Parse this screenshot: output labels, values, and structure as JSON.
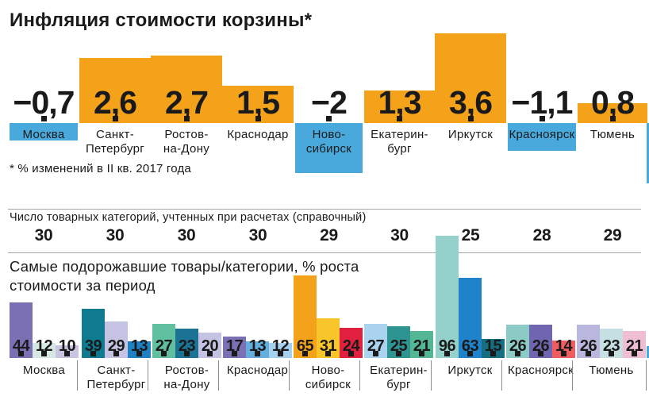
{
  "title": "Инфляция стоимости корзины*",
  "footnote": "* % изменений в II кв. 2017 года",
  "colors": {
    "positive_bar": "#F5A21B",
    "negative_bar": "#4AA9DC",
    "text": "#1a1a1a",
    "rule": "#a6a6a6",
    "divider": "#8c8c8c"
  },
  "middle": {
    "label": "Число товарных категорий, учтенных при расчетах (справочный)"
  },
  "bottom": {
    "heading": "Самые подорожавшие товары/категории, % роста стоимости за период"
  },
  "chart_data": [
    {
      "type": "bar",
      "title": "Инфляция стоимости корзины*",
      "subtitle": "* % изменений в II кв. 2017 года",
      "categories": [
        "Москва",
        "Санкт-Петербург",
        "Ростов-на-Дону",
        "Краснодар",
        "Новосибирск",
        "Екатеринбург",
        "Иркутск",
        "Красноярск",
        "Тюмень"
      ],
      "category_label_lines": [
        [
          "Москва"
        ],
        [
          "Санкт-",
          "Петербург"
        ],
        [
          "Ростов-",
          "на-Дону"
        ],
        [
          "Краснодар"
        ],
        [
          "Ново-",
          "сибирск"
        ],
        [
          "Екатерин-",
          "бург"
        ],
        [
          "Иркутск"
        ],
        [
          "Красноярск"
        ],
        [
          "Тюмень"
        ]
      ],
      "values": [
        -0.7,
        2.6,
        2.7,
        1.5,
        -2,
        1.3,
        3.6,
        -1.1,
        0.8
      ],
      "value_labels": [
        "−0,7",
        "2,6",
        "2,7",
        "1,5",
        "−2",
        "1,3",
        "3,6",
        "−1,1",
        "0,8"
      ],
      "positive_color": "#F5A21B",
      "negative_color": "#4AA9DC",
      "ylim": [
        -2,
        3.6
      ],
      "grid": false,
      "legend": false
    },
    {
      "type": "table",
      "title": "Число товарных категорий, учтенных при расчетах (справочный)",
      "categories": [
        "Москва",
        "Санкт-Петербург",
        "Ростов-на-Дону",
        "Краснодар",
        "Новосибирск",
        "Екатеринбург",
        "Иркутск",
        "Красноярск",
        "Тюмень"
      ],
      "values": [
        30,
        30,
        30,
        30,
        29,
        30,
        25,
        28,
        29
      ]
    },
    {
      "type": "bar",
      "subtype": "grouped",
      "title": "Самые подорожавшие товары/категории, % роста стоимости за период",
      "categories": [
        "Москва",
        "Санкт-Петербург",
        "Ростов-на-Дону",
        "Краснодар",
        "Новосибирск",
        "Екатеринбург",
        "Иркутск",
        "Красноярск",
        "Тюмень"
      ],
      "category_label_lines": [
        [
          "Москва"
        ],
        [
          "Санкт-",
          "Петербург"
        ],
        [
          "Ростов-",
          "на-Дону"
        ],
        [
          "Краснодар"
        ],
        [
          "Ново-",
          "сибирск"
        ],
        [
          "Екатерин-",
          "бург"
        ],
        [
          "Иркутск"
        ],
        [
          "Красноярск"
        ],
        [
          "Тюмень"
        ]
      ],
      "ylim": [
        0,
        96
      ],
      "grid": false,
      "legend": false,
      "groups": [
        {
          "city": "Москва",
          "bars": [
            {
              "value": 44,
              "color": "#7C70B5"
            },
            {
              "value": 12,
              "color": "#D5E8E3"
            },
            {
              "value": 10,
              "color": "#C8C5E2"
            }
          ]
        },
        {
          "city": "Санкт-Петербург",
          "bars": [
            {
              "value": 39,
              "color": "#0F7B90"
            },
            {
              "value": 29,
              "color": "#C4C3E3"
            },
            {
              "value": 13,
              "color": "#1F81C4"
            }
          ]
        },
        {
          "city": "Ростов-на-Дону",
          "bars": [
            {
              "value": 27,
              "color": "#5FBF9E"
            },
            {
              "value": 23,
              "color": "#1A7394"
            },
            {
              "value": 20,
              "color": "#C4C3E3"
            }
          ]
        },
        {
          "city": "Краснодар",
          "bars": [
            {
              "value": 17,
              "color": "#7C70B5"
            },
            {
              "value": 13,
              "color": "#64AEDE"
            },
            {
              "value": 12,
              "color": "#A5D0EE"
            }
          ]
        },
        {
          "city": "Новосибирск",
          "bars": [
            {
              "value": 65,
              "color": "#F5A21B"
            },
            {
              "value": 31,
              "color": "#F8C52B"
            },
            {
              "value": 24,
              "color": "#E0203E"
            }
          ]
        },
        {
          "city": "Екатеринбург",
          "bars": [
            {
              "value": 27,
              "color": "#A9D3EF"
            },
            {
              "value": 25,
              "color": "#2E9492"
            },
            {
              "value": 21,
              "color": "#53B795"
            }
          ]
        },
        {
          "city": "Иркутск",
          "bars": [
            {
              "value": 96,
              "color": "#93D1CA"
            },
            {
              "value": 63,
              "color": "#1E83CA"
            },
            {
              "value": 15,
              "color": "#166F81"
            }
          ]
        },
        {
          "city": "Красноярск",
          "bars": [
            {
              "value": 26,
              "color": "#8BCAC5"
            },
            {
              "value": 26,
              "color": "#6F65B0"
            },
            {
              "value": 14,
              "color": "#F05C60"
            }
          ]
        },
        {
          "city": "Тюмень",
          "bars": [
            {
              "value": 26,
              "color": "#B9B7DE"
            },
            {
              "value": 23,
              "color": "#C6DFE2"
            },
            {
              "value": 21,
              "color": "#F0BED3"
            }
          ]
        }
      ]
    }
  ]
}
